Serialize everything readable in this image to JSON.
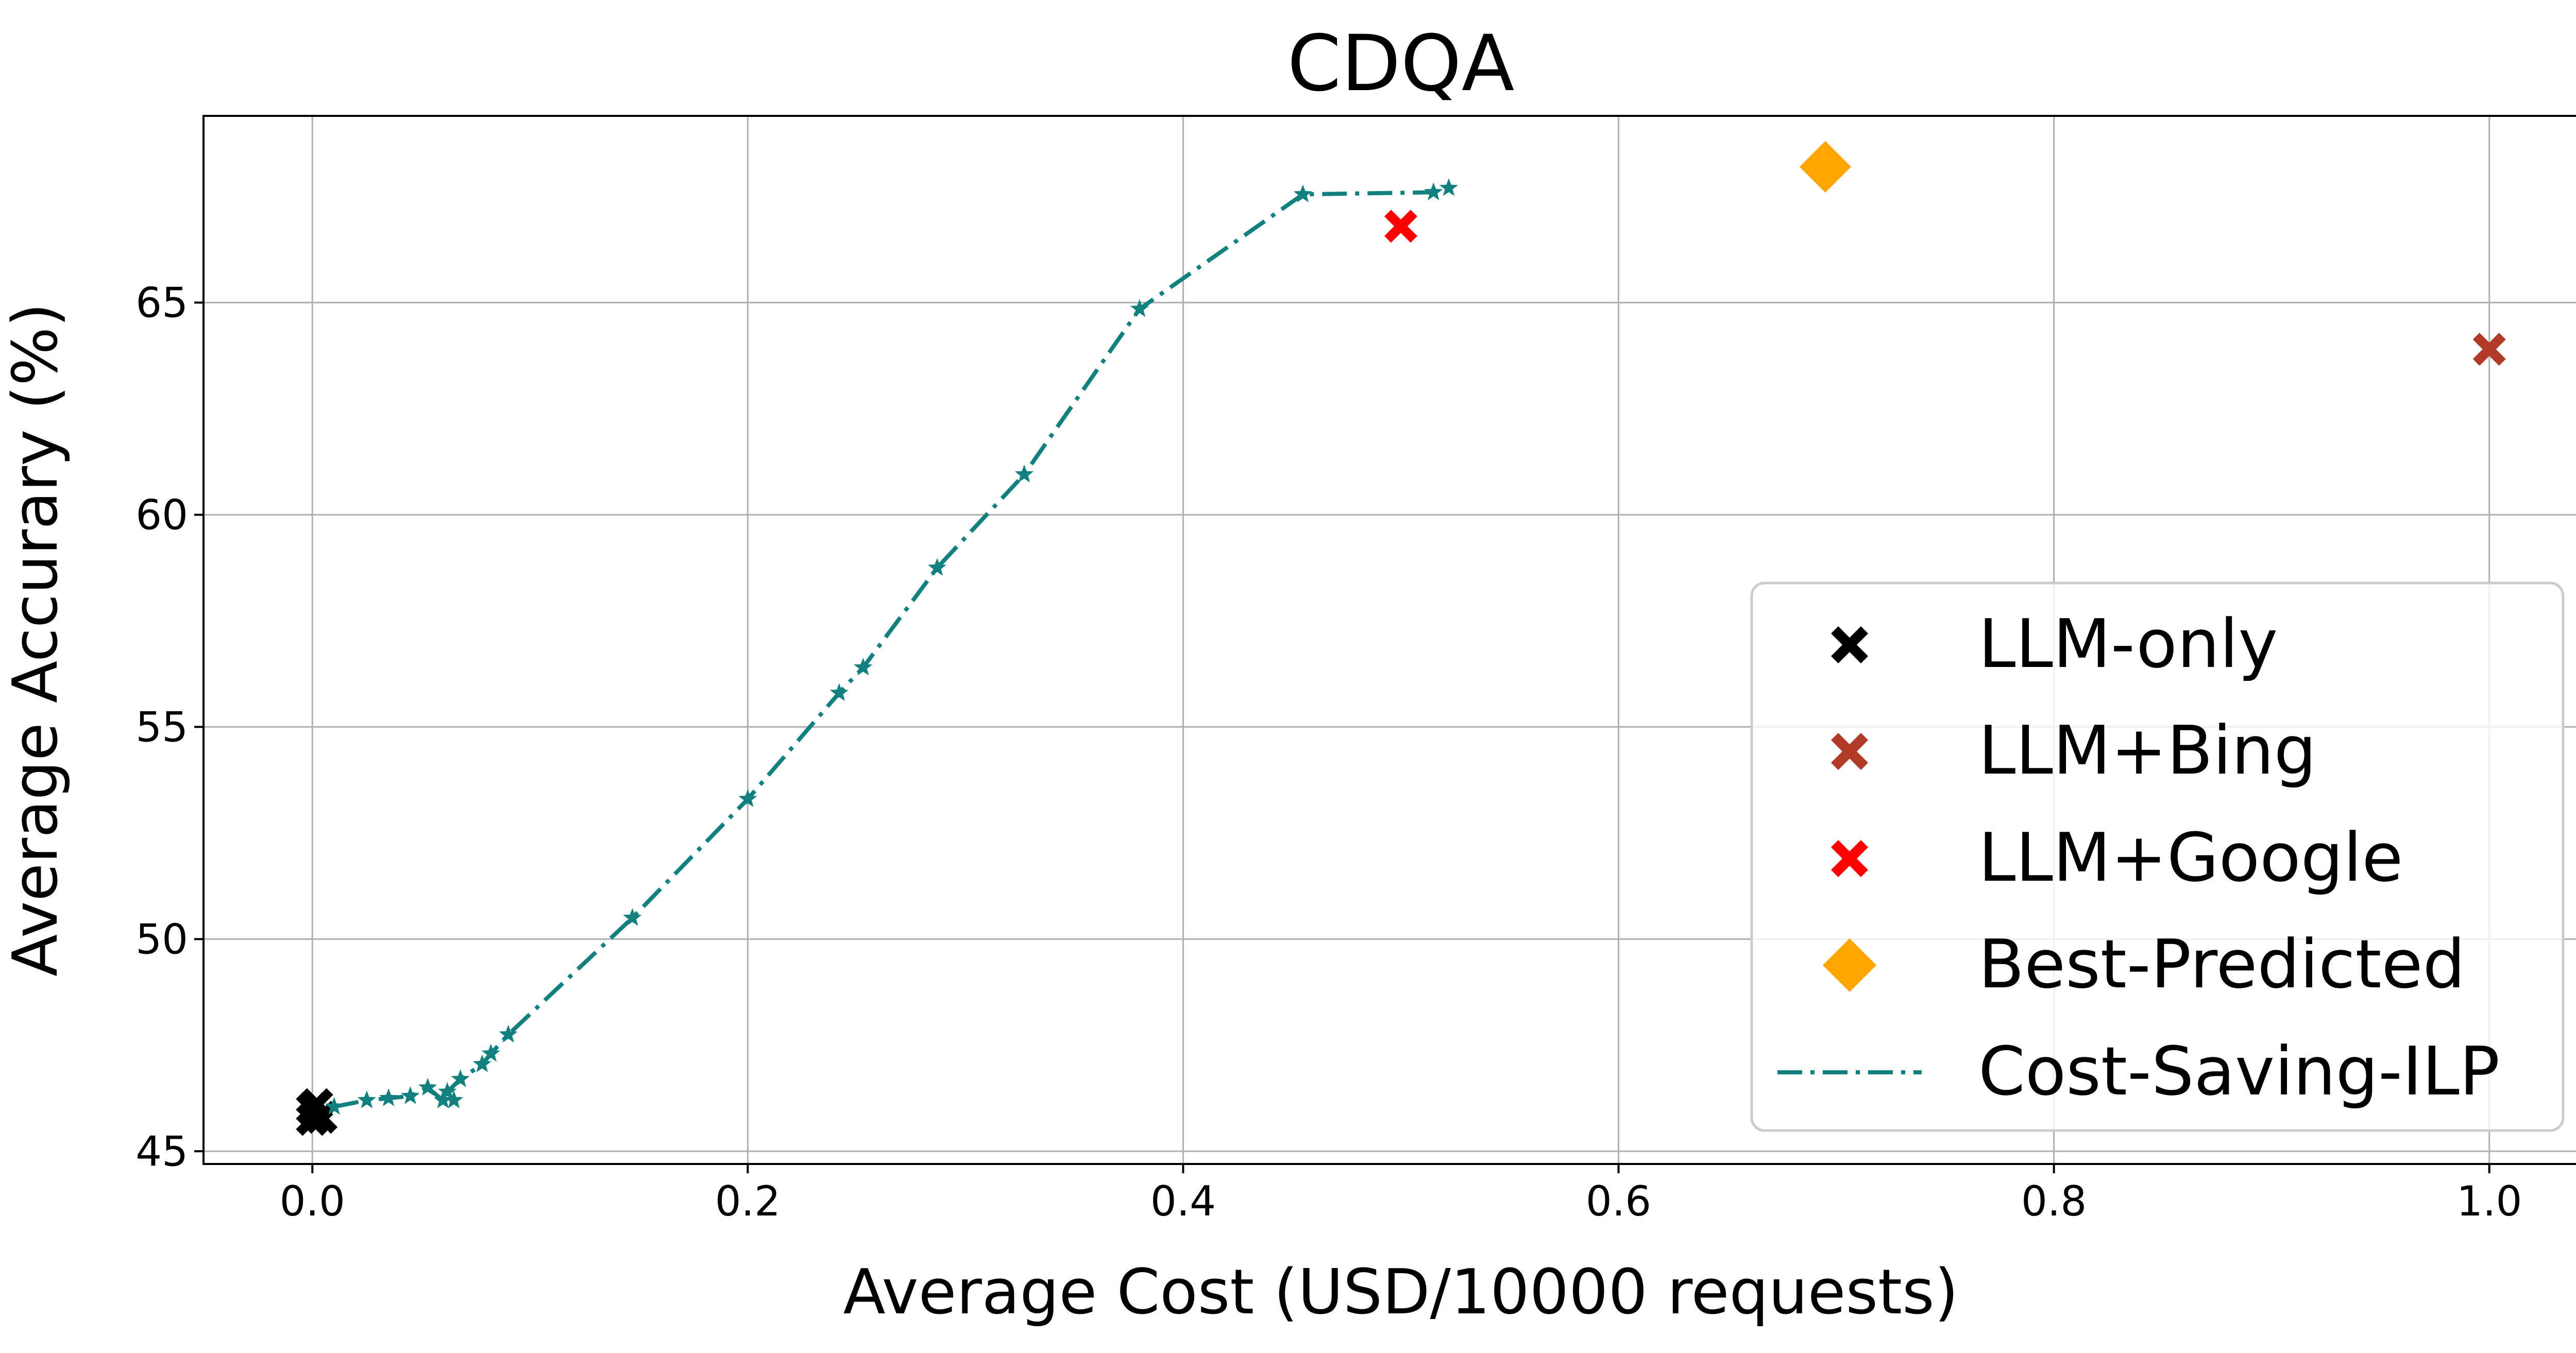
{
  "chart_data": {
    "type": "scatter",
    "title": "CDQA",
    "xlabel": "Average Cost (USD/10000 requests)",
    "ylabel": "Average Accurary (%)",
    "xlim": [
      -0.05,
      1.05
    ],
    "ylim": [
      44.7,
      69.4
    ],
    "xticks": [
      0.0,
      0.2,
      0.4,
      0.6,
      0.8,
      1.0
    ],
    "xtick_labels": [
      "0.0",
      "0.2",
      "0.4",
      "0.6",
      "0.8",
      "1.0"
    ],
    "yticks": [
      45,
      50,
      55,
      60,
      65
    ],
    "ytick_labels": [
      "45",
      "50",
      "55",
      "60",
      "65"
    ],
    "grid": true,
    "legend_position": "lower-right",
    "colors": {
      "llm_only": "#000000",
      "llm_bing": "#b23a28",
      "llm_google": "#ff0000",
      "best_predicted": "#ffa500",
      "ilp": "#138080"
    },
    "series": [
      {
        "name": "LLM-only",
        "kind": "scatter",
        "marker": "x-filled",
        "color_key": "llm_only",
        "points": [
          {
            "x": 0.0,
            "y": 46.0
          },
          {
            "x": 0.004,
            "y": 45.8
          },
          {
            "x": 0.002,
            "y": 46.1
          },
          {
            "x": 0.0,
            "y": 45.75
          }
        ]
      },
      {
        "name": "LLM+Bing",
        "kind": "scatter",
        "marker": "x-filled",
        "color_key": "llm_bing",
        "points": [
          {
            "x": 1.0,
            "y": 63.9
          }
        ]
      },
      {
        "name": "LLM+Google",
        "kind": "scatter",
        "marker": "x-filled",
        "color_key": "llm_google",
        "points": [
          {
            "x": 0.5,
            "y": 66.8
          }
        ]
      },
      {
        "name": "Best-Predicted",
        "kind": "scatter",
        "marker": "diamond",
        "color_key": "best_predicted",
        "points": [
          {
            "x": 0.695,
            "y": 68.2
          }
        ]
      },
      {
        "name": "Cost-Saving-ILP",
        "kind": "line",
        "marker": "star",
        "linestyle": "dashdot",
        "color_key": "ilp",
        "points": [
          {
            "x": 0.01,
            "y": 46.05
          },
          {
            "x": 0.025,
            "y": 46.2
          },
          {
            "x": 0.035,
            "y": 46.25
          },
          {
            "x": 0.045,
            "y": 46.3
          },
          {
            "x": 0.053,
            "y": 46.5
          },
          {
            "x": 0.06,
            "y": 46.2
          },
          {
            "x": 0.065,
            "y": 46.2
          },
          {
            "x": 0.062,
            "y": 46.4
          },
          {
            "x": 0.068,
            "y": 46.7
          },
          {
            "x": 0.078,
            "y": 47.05
          },
          {
            "x": 0.082,
            "y": 47.3
          },
          {
            "x": 0.09,
            "y": 47.75
          },
          {
            "x": 0.147,
            "y": 50.5
          },
          {
            "x": 0.2,
            "y": 53.3
          },
          {
            "x": 0.242,
            "y": 55.8
          },
          {
            "x": 0.253,
            "y": 56.4
          },
          {
            "x": 0.287,
            "y": 58.75
          },
          {
            "x": 0.327,
            "y": 60.95
          },
          {
            "x": 0.38,
            "y": 64.85
          },
          {
            "x": 0.455,
            "y": 67.55
          },
          {
            "x": 0.515,
            "y": 67.6
          },
          {
            "x": 0.522,
            "y": 67.7
          }
        ]
      }
    ]
  }
}
